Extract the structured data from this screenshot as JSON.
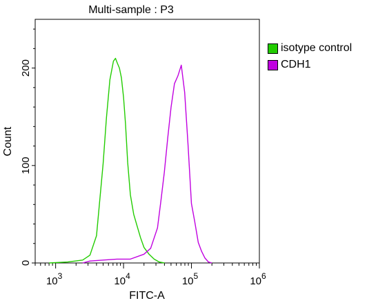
{
  "chart_data": {
    "type": "line",
    "title": "Multi-sample : P3",
    "xlabel": "FITC-A",
    "ylabel": "Count",
    "x_scale": "log",
    "xlim": [
      500,
      1000000
    ],
    "ylim": [
      0,
      250
    ],
    "x_ticks": [
      {
        "value": 1000,
        "label": "10",
        "exp": "3"
      },
      {
        "value": 10000,
        "label": "10",
        "exp": "4"
      },
      {
        "value": 100000,
        "label": "10",
        "exp": "5"
      },
      {
        "value": 1000000,
        "label": "10",
        "exp": "6"
      }
    ],
    "y_ticks": [
      0,
      100,
      200
    ],
    "legend_position": "right",
    "series": [
      {
        "name": "isotype control",
        "color": "#22cc00",
        "x": [
          800,
          1500,
          2500,
          3200,
          4000,
          5000,
          5600,
          6300,
          7100,
          7600,
          8100,
          8700,
          9300,
          10000,
          10700,
          11500,
          12600,
          14100,
          15800,
          17800,
          20000,
          23700,
          28200,
          33500,
          40000
        ],
        "y": [
          0,
          1,
          3,
          8,
          28,
          102,
          149,
          188,
          207,
          210,
          205,
          200,
          190,
          170,
          142,
          103,
          70,
          50,
          38,
          26,
          16,
          9,
          4,
          1,
          0
        ]
      },
      {
        "name": "CDH1",
        "color": "#c000e0",
        "x": [
          2500,
          3200,
          5000,
          8000,
          12600,
          20000,
          25100,
          31600,
          35500,
          39800,
          44700,
          50100,
          56200,
          63100,
          70800,
          79400,
          89100,
          100000,
          112000,
          126000,
          141000,
          158000,
          178000,
          200000
        ],
        "y": [
          0,
          2,
          3,
          4,
          4,
          9,
          15,
          36,
          64,
          93,
          128,
          160,
          184,
          192,
          203,
          175,
          121,
          61,
          42,
          21,
          12,
          5,
          1,
          0
        ]
      }
    ]
  }
}
